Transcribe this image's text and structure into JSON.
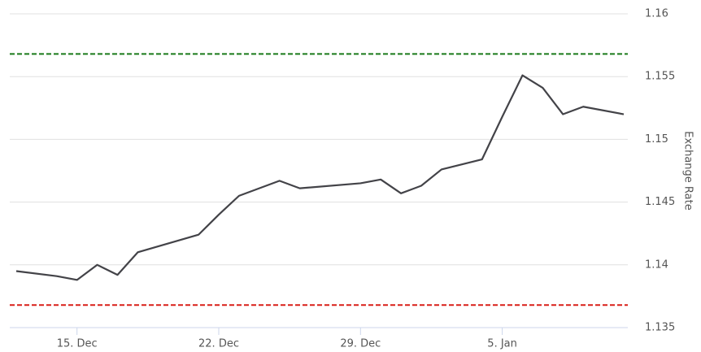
{
  "chart_data": {
    "type": "line",
    "y_axis_label": "Exchange Rate",
    "x": [
      "12. Dec",
      "14. Dec",
      "15. Dec",
      "16. Dec",
      "17. Dec",
      "18. Dec",
      "21. Dec",
      "22. Dec",
      "23. Dec",
      "25. Dec",
      "26. Dec",
      "29. Dec",
      "30. Dec",
      "31. Dec",
      "1. Jan",
      "2. Jan",
      "4. Jan",
      "5. Jan",
      "6. Jan",
      "7. Jan",
      "8. Jan",
      "9. Jan",
      "11. Jan"
    ],
    "series": [
      {
        "color": "#434348",
        "values": [
          1.1395,
          1.1391,
          1.1388,
          1.14,
          1.1392,
          1.141,
          1.1424,
          1.144,
          1.1455,
          1.1467,
          1.1461,
          1.1465,
          1.1468,
          1.1457,
          1.1463,
          1.1476,
          1.1484,
          1.1518,
          1.1551,
          1.1541,
          1.152,
          1.1526,
          1.152
        ]
      }
    ],
    "reference_lines": [
      {
        "value": 1.1568,
        "color": "#1a7a1a"
      },
      {
        "value": 1.1368,
        "color": "#d91e18"
      }
    ],
    "ylim": [
      1.135,
      1.16
    ],
    "yticks": [
      1.135,
      1.14,
      1.145,
      1.15,
      1.155,
      1.16
    ],
    "xticks": [
      "15. Dec",
      "22. Dec",
      "29. Dec",
      "5. Jan"
    ],
    "grid": true
  }
}
